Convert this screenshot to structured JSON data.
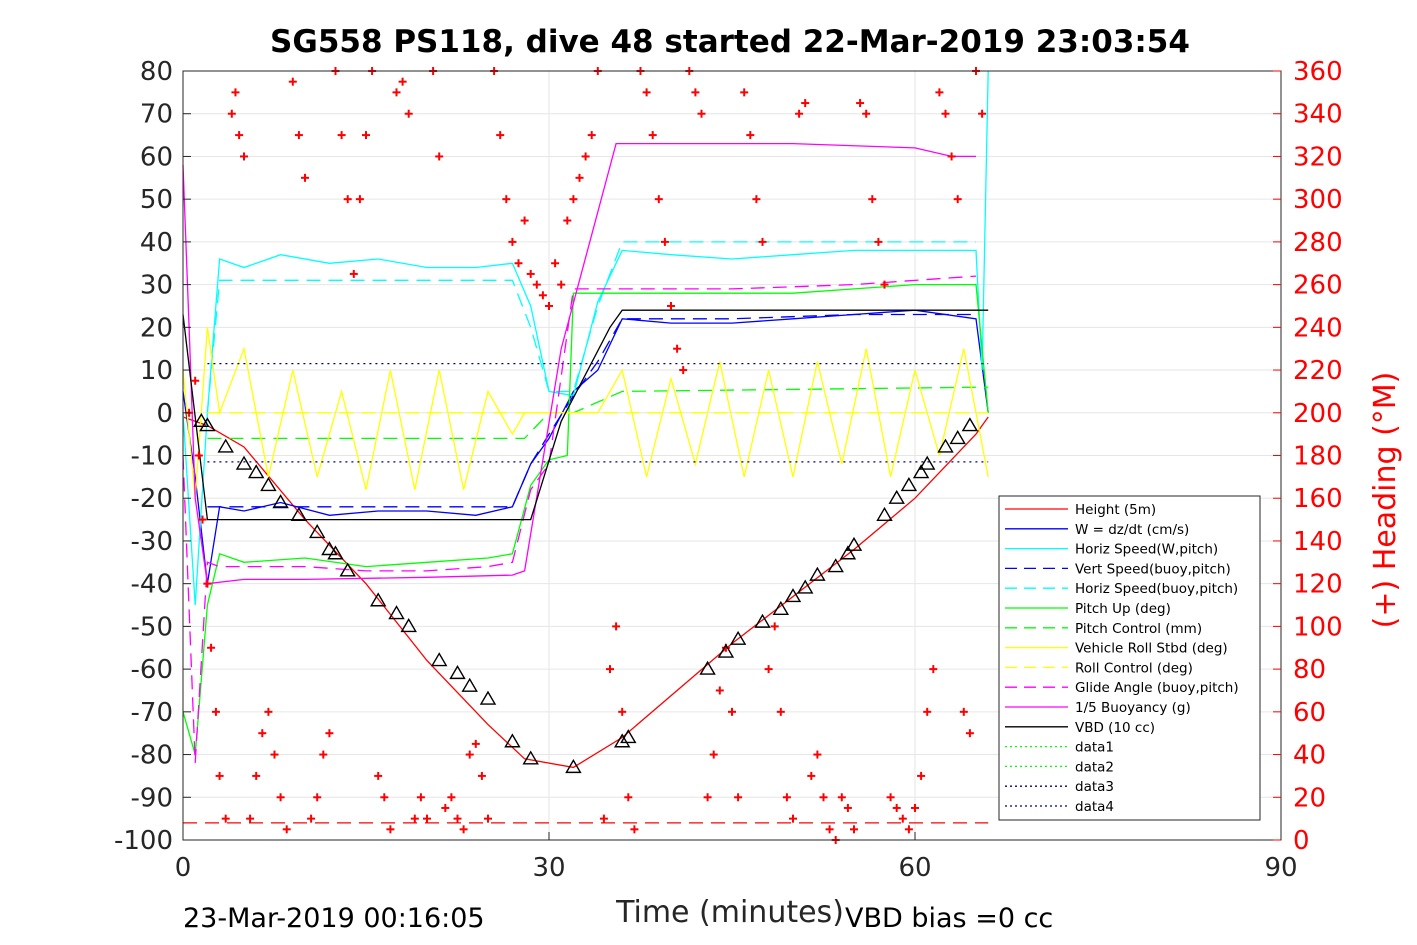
{
  "chart_data": {
    "type": "line",
    "title": "SG558 PS118, dive 48 started 22-Mar-2019 23:03:54",
    "xlabel": "Time (minutes)",
    "ylabel": "",
    "y2label": "(+) Heading (°M)",
    "xlim": [
      0,
      90
    ],
    "ylim": [
      -100,
      80
    ],
    "y2lim": [
      0,
      360
    ],
    "x_ticks": [
      "0",
      "30",
      "60",
      "90"
    ],
    "y_ticks": [
      "80",
      "70",
      "60",
      "50",
      "40",
      "30",
      "20",
      "10",
      "0",
      "-10",
      "-20",
      "-30",
      "-40",
      "-50",
      "-60",
      "-70",
      "-80",
      "-90",
      "-100"
    ],
    "y2_ticks": [
      "360",
      "340",
      "320",
      "300",
      "280",
      "260",
      "240",
      "220",
      "200",
      "180",
      "160",
      "140",
      "120",
      "100",
      "80",
      "60",
      "40",
      "20",
      "0"
    ],
    "grid": true,
    "legend_position": "bottom-right",
    "footer_left": "23-Mar-2019 00:16:05",
    "footer_right": "VBD bias =0 cc",
    "series": [
      {
        "name": "Height (5m)",
        "color": "#ff0000",
        "dash": "solid",
        "x": [
          0,
          2,
          5,
          10,
          15,
          20,
          25,
          28,
          32,
          36,
          45,
          55,
          60,
          65,
          66
        ],
        "y": [
          -1,
          -3,
          -8,
          -25,
          -40,
          -58,
          -73,
          -81,
          -83,
          -76,
          -54,
          -32,
          -20,
          -5,
          -1
        ]
      },
      {
        "name": "W = dz/dt (cm/s)",
        "color": "#0000ff",
        "dash": "solid",
        "x": [
          0,
          1,
          2,
          3,
          5,
          8,
          12,
          16,
          20,
          24,
          27,
          28.5,
          30,
          32,
          34,
          36,
          40,
          45,
          50,
          55,
          60,
          65,
          66
        ],
        "y": [
          5,
          -15,
          -40,
          -22,
          -23,
          -21,
          -24,
          -23,
          -23,
          -24,
          -22,
          -12,
          -6,
          5,
          10,
          22,
          21,
          21,
          22,
          23,
          24,
          22,
          0
        ]
      },
      {
        "name": "Horiz Speed(W,pitch)",
        "color": "#00ffff",
        "dash": "solid",
        "x": [
          0,
          1,
          2,
          3,
          5,
          8,
          12,
          16,
          20,
          24,
          27,
          28.5,
          30,
          32,
          34,
          36,
          40,
          45,
          50,
          55,
          60,
          65,
          65.5,
          66
        ],
        "y": [
          0,
          -45,
          0,
          36,
          34,
          37,
          35,
          36,
          34,
          34,
          35,
          25,
          5,
          4,
          26,
          38,
          37,
          36,
          37,
          38,
          38,
          38,
          10,
          80
        ]
      },
      {
        "name": "Vert Speed(buoy,pitch)",
        "color": "#0000ff",
        "dash": "dashed",
        "x": [
          2,
          5,
          10,
          20,
          27,
          28.5,
          30,
          32,
          34,
          36,
          45,
          55,
          65
        ],
        "y": [
          -22,
          -22,
          -22,
          -22,
          -22,
          -12,
          -5,
          4,
          12,
          22,
          22,
          23,
          23
        ]
      },
      {
        "name": "Horiz Speed(buoy,pitch)",
        "color": "#00ffff",
        "dash": "dashed",
        "x": [
          2,
          3,
          10,
          20,
          27,
          28.5,
          30,
          32,
          34,
          36,
          45,
          55,
          65
        ],
        "y": [
          0,
          31,
          31,
          31,
          31,
          20,
          5,
          5,
          25,
          40,
          40,
          40,
          40
        ]
      },
      {
        "name": "Pitch Up (deg)",
        "color": "#00ff00",
        "dash": "solid",
        "x": [
          0,
          1,
          2,
          3,
          5,
          10,
          15,
          20,
          25,
          27,
          28.5,
          30,
          31.5,
          32,
          35,
          40,
          45,
          50,
          55,
          60,
          65,
          66
        ],
        "y": [
          -70,
          -80,
          -45,
          -33,
          -35,
          -34,
          -36,
          -35,
          -34,
          -33,
          -17,
          -11,
          -10,
          28,
          28,
          28,
          28,
          28,
          29,
          30,
          30,
          0
        ]
      },
      {
        "name": "Pitch Control (mm)",
        "color": "#00ff00",
        "dash": "dashed",
        "x": [
          2,
          28,
          30,
          32,
          36,
          66
        ],
        "y": [
          -6,
          -6,
          0,
          0,
          5,
          6
        ]
      },
      {
        "name": "Vehicle Roll Stbd (deg)",
        "color": "#ffff00",
        "dash": "solid",
        "x": [
          0,
          1,
          2,
          3,
          5,
          7,
          9,
          11,
          13,
          15,
          17,
          19,
          21,
          23,
          25,
          27,
          28,
          30,
          32,
          34,
          36,
          38,
          40,
          42,
          44,
          46,
          48,
          50,
          52,
          54,
          56,
          58,
          60,
          62,
          64,
          66
        ],
        "y": [
          10,
          -20,
          20,
          0,
          15,
          -15,
          10,
          -15,
          5,
          -18,
          10,
          -18,
          10,
          -18,
          5,
          -5,
          0,
          0,
          0,
          0,
          10,
          -15,
          8,
          -12,
          12,
          -15,
          10,
          -15,
          12,
          -12,
          15,
          -15,
          10,
          -10,
          15,
          -15
        ]
      },
      {
        "name": "Roll Control (deg)",
        "color": "#ffff00",
        "dash": "dashed",
        "x": [
          2,
          28,
          30,
          66
        ],
        "y": [
          0,
          0,
          0,
          0
        ]
      },
      {
        "name": "Glide Angle (buoy,pitch)",
        "color": "#ff00ff",
        "dash": "dashed",
        "x": [
          0,
          1,
          2,
          3,
          5,
          10,
          15,
          20,
          25,
          27,
          28.5,
          30,
          32,
          36,
          45,
          55,
          65
        ],
        "y": [
          -10,
          -82,
          -35,
          -36,
          -36,
          -36,
          -37,
          -37,
          -36,
          -35,
          -18,
          -12,
          29,
          29,
          29,
          30,
          32
        ]
      },
      {
        "name": "1/5 Buoyancy (g)",
        "color": "#ff00ff",
        "dash": "solid",
        "x": [
          0,
          0.5,
          1,
          2,
          5,
          10,
          20,
          27,
          28,
          31,
          35.5,
          40,
          50,
          60,
          63,
          65
        ],
        "y": [
          58,
          20,
          -20,
          -40,
          -39,
          -39,
          -38.5,
          -38,
          -37,
          15,
          63,
          63,
          63,
          62,
          60,
          60
        ]
      },
      {
        "name": "VBD (10 cc)",
        "color": "#000000",
        "dash": "solid",
        "x": [
          0,
          2,
          5,
          27,
          28.5,
          31,
          35,
          36,
          50,
          66
        ],
        "y": [
          23,
          -25,
          -25,
          -25,
          -25,
          -2,
          20,
          24,
          24,
          24
        ]
      },
      {
        "name": "data1",
        "color": "#00ff00",
        "dash": "dotted",
        "x": [],
        "y": []
      },
      {
        "name": "data2",
        "color": "#00ff00",
        "dash": "dotted",
        "x": [],
        "y": []
      },
      {
        "name": "data3",
        "color": "#000080",
        "dash": "dotted",
        "x": [
          2,
          66
        ],
        "y": [
          11.5,
          11.5
        ]
      },
      {
        "name": "data4",
        "color": "#000080",
        "dash": "dotted",
        "x": [
          2,
          66
        ],
        "y": [
          -11.5,
          -11.5
        ]
      }
    ],
    "extra_lines": [
      {
        "color": "#ff0000",
        "dash": "dashed",
        "x": [
          0,
          66
        ],
        "y": [
          -96,
          -96
        ]
      }
    ],
    "markers": {
      "height_triangles_x": [
        1.5,
        2,
        3.5,
        5,
        6,
        7,
        8,
        9.5,
        11,
        12,
        12.5,
        13.5,
        16,
        17.5,
        18.5,
        21,
        22.5,
        23.5,
        25,
        27,
        28.5,
        32,
        36,
        36.5,
        43,
        44.5,
        45.5,
        47.5,
        49,
        50,
        51,
        52,
        53.5,
        54.5,
        55,
        57.5,
        58.5,
        59.5,
        60.5,
        61,
        62.5,
        63.5,
        64.5
      ],
      "height_triangles_y": [
        -2,
        -3,
        -8,
        -12,
        -14,
        -17,
        -21,
        -24,
        -28,
        -32,
        -33,
        -37,
        -44,
        -47,
        -50,
        -58,
        -61,
        -64,
        -67,
        -77,
        -81,
        -83,
        -77,
        -76,
        -60,
        -56,
        -53,
        -49,
        -46,
        -43,
        -41,
        -38,
        -36,
        -33,
        -31,
        -24,
        -20,
        -17,
        -14,
        -12,
        -8,
        -6,
        -3
      ],
      "heading_x": [
        0.5,
        1,
        1.3,
        1.6,
        2,
        2.3,
        2.7,
        3,
        3.5,
        4,
        4.3,
        4.6,
        5,
        5.5,
        6,
        6.5,
        7,
        7.5,
        8,
        8.5,
        9,
        9.5,
        10,
        10.5,
        11,
        11.5,
        12,
        12.5,
        13,
        13.5,
        14,
        14.5,
        15,
        15.5,
        16,
        16.5,
        17,
        17.5,
        18,
        18.5,
        19,
        19.5,
        20,
        20.5,
        21,
        21.5,
        22,
        22.5,
        23,
        23.5,
        24,
        24.5,
        25,
        25.5,
        26,
        26.5,
        27,
        27.5,
        28,
        28.5,
        29,
        29.5,
        30,
        30.5,
        31,
        31.5,
        32,
        32.5,
        33,
        33.5,
        34,
        34.5,
        35,
        35.5,
        36,
        36.5,
        37,
        37.5,
        38,
        38.5,
        39,
        39.5,
        40,
        40.5,
        41,
        41.5,
        42,
        42.5,
        43,
        43.5,
        44,
        44.5,
        45,
        45.5,
        46,
        46.5,
        47,
        47.5,
        48,
        48.5,
        49,
        49.5,
        50,
        50.5,
        51,
        51.5,
        52,
        52.5,
        53,
        53.5,
        54,
        54.5,
        55,
        55.5,
        56,
        56.5,
        57,
        57.5,
        58,
        58.5,
        59,
        59.5,
        60,
        60.5,
        61,
        61.5,
        62,
        62.5,
        63,
        63.5,
        64,
        64.5,
        65,
        65.5
      ],
      "heading_y": [
        200,
        215,
        180,
        150,
        120,
        90,
        60,
        30,
        10,
        340,
        350,
        330,
        320,
        10,
        30,
        50,
        60,
        40,
        20,
        5,
        355,
        330,
        310,
        10,
        20,
        40,
        50,
        360,
        330,
        300,
        265,
        300,
        330,
        360,
        30,
        20,
        5,
        350,
        355,
        340,
        10,
        20,
        10,
        360,
        320,
        15,
        20,
        10,
        5,
        40,
        45,
        30,
        10,
        360,
        330,
        300,
        280,
        270,
        290,
        265,
        260,
        255,
        250,
        270,
        260,
        290,
        300,
        310,
        320,
        330,
        360,
        10,
        80,
        100,
        60,
        20,
        5,
        360,
        350,
        330,
        300,
        280,
        250,
        230,
        220,
        360,
        350,
        340,
        20,
        40,
        70,
        90,
        60,
        20,
        350,
        330,
        300,
        280,
        80,
        100,
        60,
        20,
        10,
        340,
        345,
        30,
        40,
        20,
        5,
        0,
        20,
        15,
        5,
        345,
        340,
        300,
        280,
        260,
        20,
        15,
        10,
        5,
        15,
        30,
        60,
        80,
        350,
        340,
        320,
        300,
        60,
        50,
        360,
        340
      ]
    }
  }
}
